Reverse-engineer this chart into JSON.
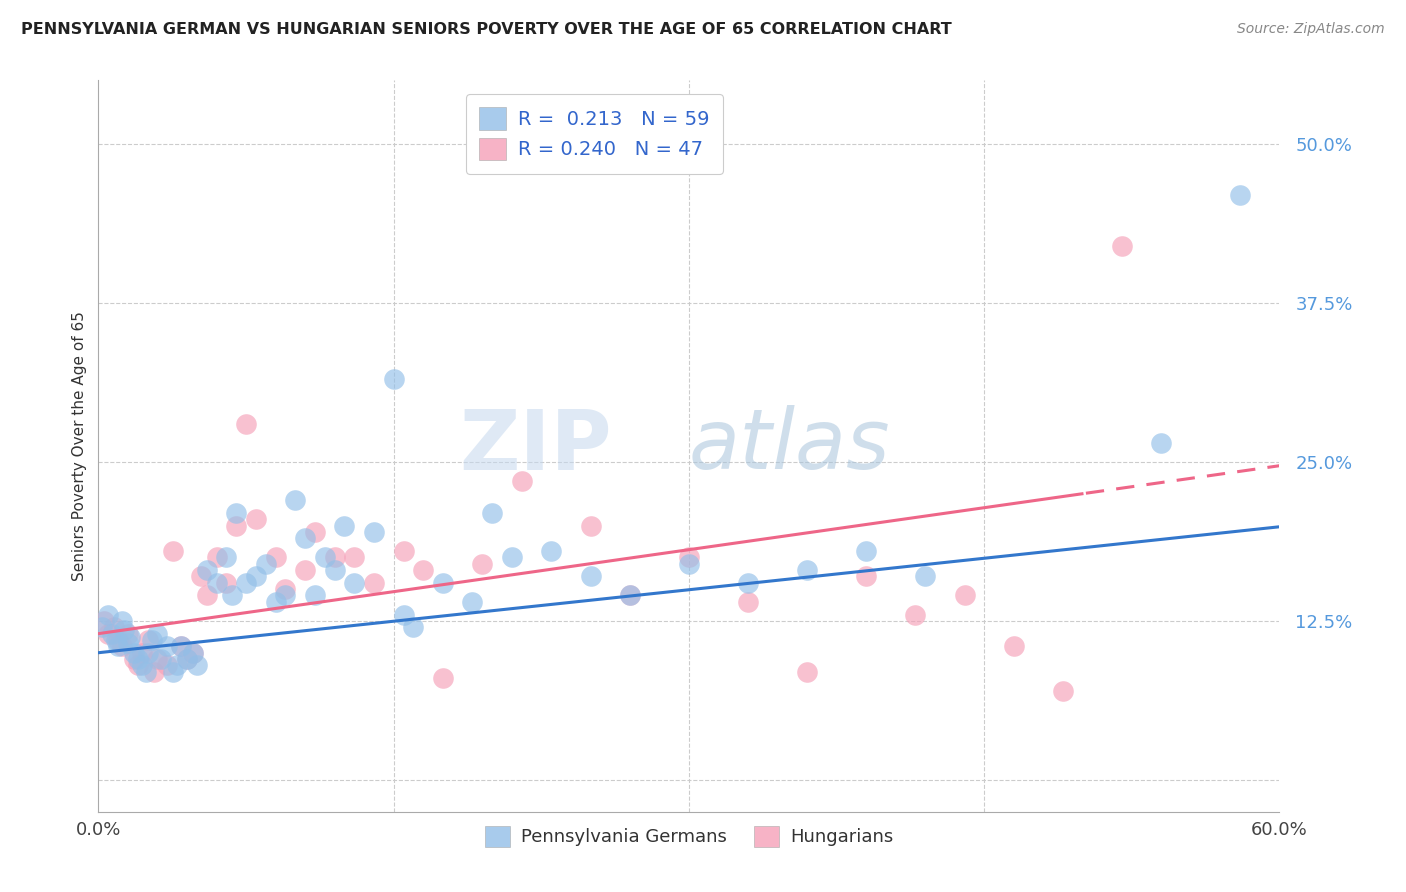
{
  "title": "PENNSYLVANIA GERMAN VS HUNGARIAN SENIORS POVERTY OVER THE AGE OF 65 CORRELATION CHART",
  "source": "Source: ZipAtlas.com",
  "ylabel": "Seniors Poverty Over the Age of 65",
  "bottom_legend": [
    "Pennsylvania Germans",
    "Hungarians"
  ],
  "watermark_zip": "ZIP",
  "watermark_atlas": "atlas",
  "blue_color": "#92bfe8",
  "pink_color": "#f5a0b8",
  "line_blue": "#3377cc",
  "line_pink": "#ee6688",
  "xmin": 0.0,
  "xmax": 0.6,
  "ymin": -0.025,
  "ymax": 0.55,
  "yticks": [
    0.0,
    0.125,
    0.25,
    0.375,
    0.5
  ],
  "ytick_labels": [
    "",
    "12.5%",
    "25.0%",
    "37.5%",
    "50.0%"
  ],
  "pa_german_x": [
    0.002,
    0.005,
    0.007,
    0.009,
    0.01,
    0.012,
    0.013,
    0.015,
    0.016,
    0.018,
    0.02,
    0.022,
    0.024,
    0.025,
    0.027,
    0.03,
    0.032,
    0.035,
    0.038,
    0.04,
    0.042,
    0.045,
    0.048,
    0.05,
    0.055,
    0.06,
    0.065,
    0.068,
    0.07,
    0.075,
    0.08,
    0.085,
    0.09,
    0.095,
    0.1,
    0.105,
    0.11,
    0.115,
    0.12,
    0.125,
    0.13,
    0.14,
    0.15,
    0.155,
    0.16,
    0.175,
    0.19,
    0.2,
    0.21,
    0.23,
    0.25,
    0.27,
    0.3,
    0.33,
    0.36,
    0.39,
    0.42,
    0.54,
    0.58
  ],
  "pa_german_y": [
    0.12,
    0.13,
    0.115,
    0.11,
    0.105,
    0.125,
    0.118,
    0.108,
    0.112,
    0.1,
    0.095,
    0.09,
    0.085,
    0.1,
    0.11,
    0.115,
    0.095,
    0.105,
    0.085,
    0.09,
    0.105,
    0.095,
    0.1,
    0.09,
    0.165,
    0.155,
    0.175,
    0.145,
    0.21,
    0.155,
    0.16,
    0.17,
    0.14,
    0.145,
    0.22,
    0.19,
    0.145,
    0.175,
    0.165,
    0.2,
    0.155,
    0.195,
    0.315,
    0.13,
    0.12,
    0.155,
    0.14,
    0.21,
    0.175,
    0.18,
    0.16,
    0.145,
    0.17,
    0.155,
    0.165,
    0.18,
    0.16,
    0.265,
    0.46
  ],
  "hungarian_x": [
    0.003,
    0.005,
    0.008,
    0.01,
    0.012,
    0.015,
    0.018,
    0.02,
    0.022,
    0.025,
    0.028,
    0.03,
    0.035,
    0.038,
    0.042,
    0.045,
    0.048,
    0.052,
    0.055,
    0.06,
    0.065,
    0.07,
    0.075,
    0.08,
    0.09,
    0.095,
    0.105,
    0.11,
    0.12,
    0.13,
    0.14,
    0.155,
    0.165,
    0.175,
    0.195,
    0.215,
    0.25,
    0.27,
    0.3,
    0.33,
    0.36,
    0.39,
    0.415,
    0.44,
    0.465,
    0.49,
    0.52
  ],
  "hungarian_y": [
    0.125,
    0.115,
    0.12,
    0.11,
    0.105,
    0.115,
    0.095,
    0.09,
    0.1,
    0.11,
    0.085,
    0.095,
    0.09,
    0.18,
    0.105,
    0.095,
    0.1,
    0.16,
    0.145,
    0.175,
    0.155,
    0.2,
    0.28,
    0.205,
    0.175,
    0.15,
    0.165,
    0.195,
    0.175,
    0.175,
    0.155,
    0.18,
    0.165,
    0.08,
    0.17,
    0.235,
    0.2,
    0.145,
    0.175,
    0.14,
    0.085,
    0.16,
    0.13,
    0.145,
    0.105,
    0.07,
    0.42
  ]
}
